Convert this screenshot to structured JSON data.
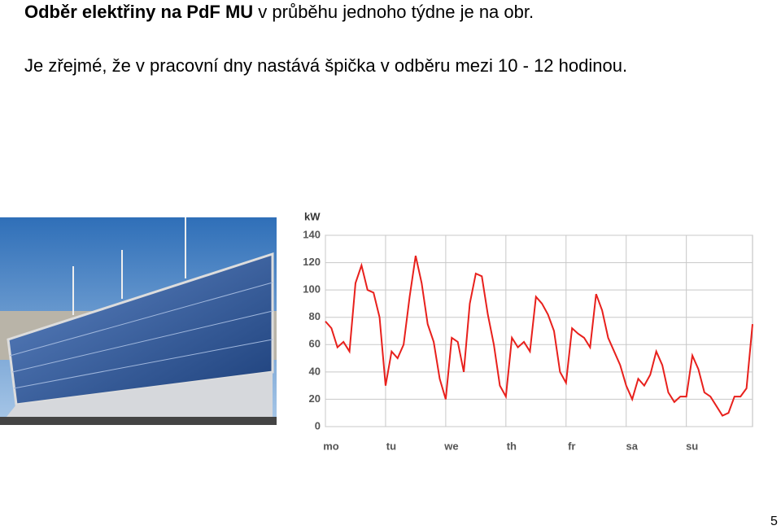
{
  "header": {
    "title_bold": "Odběr elektřiny na  PdF MU",
    "title_rest": " v průběhu jednoho týdne je na obr."
  },
  "body": "Je zřejmé, že v pracovní dny nastává špička v odběru mezi 10 - 12 hodinou.",
  "page_number": "5",
  "chart_data": {
    "type": "line",
    "y_label": "kW",
    "x": [
      0,
      0.1,
      0.2,
      0.3,
      0.4,
      0.5,
      0.6,
      0.7,
      0.8,
      0.9,
      1.0,
      1.1,
      1.2,
      1.3,
      1.4,
      1.5,
      1.6,
      1.7,
      1.8,
      1.9,
      2.0,
      2.1,
      2.2,
      2.3,
      2.4,
      2.5,
      2.6,
      2.7,
      2.8,
      2.9,
      3.0,
      3.1,
      3.2,
      3.3,
      3.4,
      3.5,
      3.6,
      3.7,
      3.8,
      3.9,
      4.0,
      4.1,
      4.2,
      4.3,
      4.4,
      4.5,
      4.6,
      4.7,
      4.8,
      4.9,
      5.0,
      5.1,
      5.2,
      5.3,
      5.4,
      5.5,
      5.6,
      5.7,
      5.8,
      5.9,
      6.0,
      6.1,
      6.2,
      6.3,
      6.4,
      6.5,
      6.6,
      6.7,
      6.8,
      6.9,
      7.0,
      7.1
    ],
    "series": [
      {
        "name": "kW",
        "color": "#e8201c",
        "values": [
          77,
          72,
          58,
          62,
          55,
          105,
          118,
          100,
          98,
          80,
          30,
          55,
          50,
          60,
          95,
          125,
          105,
          75,
          62,
          35,
          20,
          65,
          62,
          40,
          90,
          112,
          110,
          82,
          60,
          30,
          22,
          65,
          58,
          62,
          55,
          95,
          90,
          82,
          70,
          40,
          32,
          72,
          68,
          65,
          58,
          97,
          85,
          65,
          55,
          45,
          30,
          20,
          35,
          30,
          38,
          55,
          45,
          25,
          18,
          22,
          22,
          52,
          42,
          25,
          22,
          15,
          8,
          10,
          22,
          22,
          28,
          75
        ]
      }
    ],
    "xlim": [
      0,
      7.1
    ],
    "ylim": [
      0,
      140
    ],
    "xticks": [
      {
        "value": 0,
        "label": "mo"
      },
      {
        "value": 1,
        "label": "tu"
      },
      {
        "value": 2,
        "label": "we"
      },
      {
        "value": 3,
        "label": "th"
      },
      {
        "value": 4,
        "label": "fr"
      },
      {
        "value": 5,
        "label": "sa"
      },
      {
        "value": 6,
        "label": "su"
      }
    ],
    "yticks": [
      0,
      20,
      40,
      60,
      80,
      100,
      120,
      140
    ],
    "grid": true
  }
}
